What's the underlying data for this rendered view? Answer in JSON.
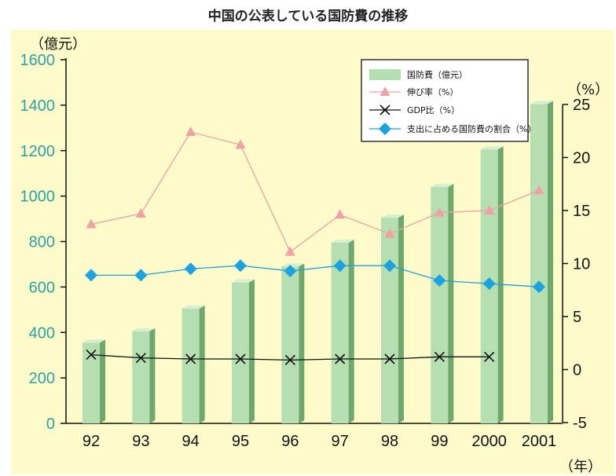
{
  "chart_data": {
    "type": "bar",
    "title": "中国の公表している国防費の推移",
    "left_axis_unit": "（億元）",
    "right_axis_unit": "（%）",
    "x_axis_unit": "（年）",
    "categories": [
      "92",
      "93",
      "94",
      "95",
      "96",
      "97",
      "98",
      "99",
      "2000",
      "2001"
    ],
    "left_ylim": [
      0,
      1600
    ],
    "left_ticks": [
      0,
      200,
      400,
      600,
      800,
      1000,
      1200,
      1400,
      1600
    ],
    "right_ylim": [
      -5,
      25
    ],
    "right_ticks": [
      -5,
      0,
      5,
      10,
      15,
      20,
      25
    ],
    "grid": false,
    "legend_placement": "top-right",
    "series": [
      {
        "name": "国防費（億元）",
        "type": "bar",
        "axis": "left",
        "color": "#b5deb1",
        "values": [
          355,
          405,
          505,
          620,
          690,
          795,
          905,
          1040,
          1205,
          1405
        ]
      },
      {
        "name": "伸び率（%）",
        "type": "line",
        "axis": "right",
        "color": "#f1a0a6",
        "values": [
          13.7,
          14.7,
          22.4,
          21.2,
          11.1,
          14.6,
          12.8,
          14.8,
          15.0,
          16.9
        ]
      },
      {
        "name": "GDP比（%）",
        "type": "line",
        "axis": "right",
        "color": "#111111",
        "values": [
          1.4,
          1.1,
          1.0,
          1.0,
          0.9,
          1.0,
          1.0,
          1.2,
          1.2,
          null
        ]
      },
      {
        "name": "支出に占める国防費の割合（%）",
        "type": "line",
        "axis": "right",
        "color": "#1aa3e0",
        "values": [
          8.9,
          8.9,
          9.5,
          9.8,
          9.3,
          9.8,
          9.8,
          8.4,
          8.1,
          7.8
        ]
      }
    ]
  }
}
